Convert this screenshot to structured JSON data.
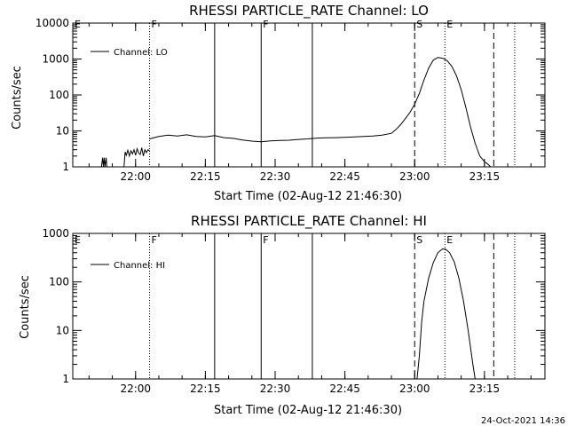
{
  "chart_data": [
    {
      "type": "line",
      "title": "RHESSI PARTICLE_RATE Channel: LO",
      "xlabel": "Start Time (02-Aug-12 21:46:30)",
      "ylabel": "Counts/sec",
      "yscale": "log",
      "ylim": [
        1,
        10000
      ],
      "xlim": [
        "21:46:30",
        "23:28:00"
      ],
      "x_ticks": [
        "22:00",
        "22:15",
        "22:30",
        "22:45",
        "23:00",
        "23:15"
      ],
      "y_ticks": [
        "1",
        "10",
        "100",
        "1000",
        "10000"
      ],
      "legend": {
        "label": "Channel: LO",
        "position": "top-left"
      },
      "markers": [
        {
          "label": "E",
          "x": "21:46:30",
          "style": "dotted"
        },
        {
          "label": "F",
          "x": "22:03:00",
          "style": "dotted"
        },
        {
          "label": "",
          "x": "22:17:00",
          "style": "solid"
        },
        {
          "label": "F",
          "x": "22:27:00",
          "style": "solid"
        },
        {
          "label": "",
          "x": "22:38:00",
          "style": "solid"
        },
        {
          "label": "S",
          "x": "23:00:00",
          "style": "dashed"
        },
        {
          "label": "E",
          "x": "23:06:30",
          "style": "dotted"
        },
        {
          "label": "",
          "x": "23:17:00",
          "style": "dashed"
        },
        {
          "label": "",
          "x": "23:21:30",
          "style": "dotted"
        }
      ],
      "series": [
        {
          "name": "Channel: LO",
          "segments": [
            {
              "x": [
                "21:52:40",
                "21:52:55",
                "21:53:05",
                "21:53:15",
                "21:53:25",
                "21:53:40",
                "21:53:50",
                "21:54:00"
              ],
              "y": [
                1,
                1.8,
                1,
                1.8,
                1,
                1.8,
                1,
                1
              ]
            },
            {
              "x": [
                "21:57:30",
                "21:57:45",
                "21:58:00",
                "21:58:20",
                "21:58:40",
                "21:59:00",
                "21:59:20",
                "21:59:40",
                "22:00:00",
                "22:00:20",
                "22:00:40",
                "22:01:00",
                "22:01:20",
                "22:01:40",
                "22:02:00",
                "22:02:20",
                "22:02:40",
                "22:03:00"
              ],
              "y": [
                1,
                2.6,
                2.1,
                2.9,
                2.0,
                2.8,
                2.3,
                3.0,
                2.1,
                3.2,
                2.4,
                2.2,
                3.4,
                2.0,
                3.0,
                2.5,
                3.0,
                2.8
              ]
            },
            {
              "x": [
                "22:03:00",
                "22:05:00",
                "22:07:00",
                "22:09:00",
                "22:11:00",
                "22:13:00",
                "22:15:00",
                "22:17:00",
                "22:19:00",
                "22:21:00",
                "22:23:00",
                "22:25:00",
                "22:27:00",
                "22:29:00",
                "22:31:00",
                "22:33:00",
                "22:35:00",
                "22:37:00",
                "22:39:00",
                "22:41:00",
                "22:43:00",
                "22:45:00",
                "22:47:00",
                "22:49:00",
                "22:51:00",
                "22:53:00",
                "22:55:00",
                "22:56:00",
                "22:57:00",
                "22:58:00",
                "22:59:00",
                "23:00:00",
                "23:01:00",
                "23:02:00",
                "23:03:00",
                "23:04:00",
                "23:05:00",
                "23:06:00",
                "23:07:00",
                "23:08:00",
                "23:09:00",
                "23:10:00",
                "23:11:00",
                "23:12:00",
                "23:13:00",
                "23:14:00",
                "23:15:00",
                "23:15:40",
                "23:16:20"
              ],
              "y": [
                6.0,
                7.0,
                7.6,
                7.2,
                7.8,
                7.0,
                6.8,
                7.4,
                6.5,
                6.2,
                5.6,
                5.2,
                5.0,
                5.3,
                5.4,
                5.5,
                5.8,
                6.0,
                6.3,
                6.4,
                6.5,
                6.6,
                6.8,
                7.0,
                7.2,
                7.6,
                8.6,
                11,
                15,
                22,
                33,
                55,
                110,
                260,
                560,
                930,
                1100,
                1050,
                900,
                620,
                340,
                140,
                45,
                13,
                4.5,
                2.0,
                1.4,
                1.2,
                1
              ]
            }
          ]
        }
      ]
    },
    {
      "type": "line",
      "title": "RHESSI PARTICLE_RATE Channel: HI",
      "xlabel": "Start Time (02-Aug-12 21:46:30)",
      "ylabel": "Counts/sec",
      "yscale": "log",
      "ylim": [
        1,
        1000
      ],
      "xlim": [
        "21:46:30",
        "23:28:00"
      ],
      "x_ticks": [
        "22:00",
        "22:15",
        "22:30",
        "22:45",
        "23:00",
        "23:15"
      ],
      "y_ticks": [
        "1",
        "10",
        "100",
        "1000"
      ],
      "legend": {
        "label": "Channel: HI",
        "position": "top-left"
      },
      "markers": [
        {
          "label": "E",
          "x": "21:46:30",
          "style": "dotted"
        },
        {
          "label": "F",
          "x": "22:03:00",
          "style": "dotted"
        },
        {
          "label": "",
          "x": "22:17:00",
          "style": "solid"
        },
        {
          "label": "F",
          "x": "22:27:00",
          "style": "solid"
        },
        {
          "label": "",
          "x": "22:38:00",
          "style": "solid"
        },
        {
          "label": "S",
          "x": "23:00:00",
          "style": "dashed"
        },
        {
          "label": "E",
          "x": "23:06:30",
          "style": "dotted"
        },
        {
          "label": "",
          "x": "23:17:00",
          "style": "dashed"
        },
        {
          "label": "",
          "x": "23:21:30",
          "style": "dotted"
        }
      ],
      "series": [
        {
          "name": "Channel: HI",
          "segments": [
            {
              "x": [
                "23:00:30",
                "23:01:00",
                "23:01:30",
                "23:02:00",
                "23:03:00",
                "23:04:00",
                "23:05:00",
                "23:06:00",
                "23:06:40",
                "23:07:30",
                "23:08:30",
                "23:09:30",
                "23:10:30",
                "23:11:30",
                "23:12:30",
                "23:13:00"
              ],
              "y": [
                1,
                3,
                15,
                40,
                120,
                250,
                400,
                480,
                470,
                400,
                260,
                120,
                40,
                10,
                2,
                1
              ]
            }
          ]
        }
      ]
    }
  ],
  "footer": {
    "timestamp": "24-Oct-2021 14:36"
  }
}
